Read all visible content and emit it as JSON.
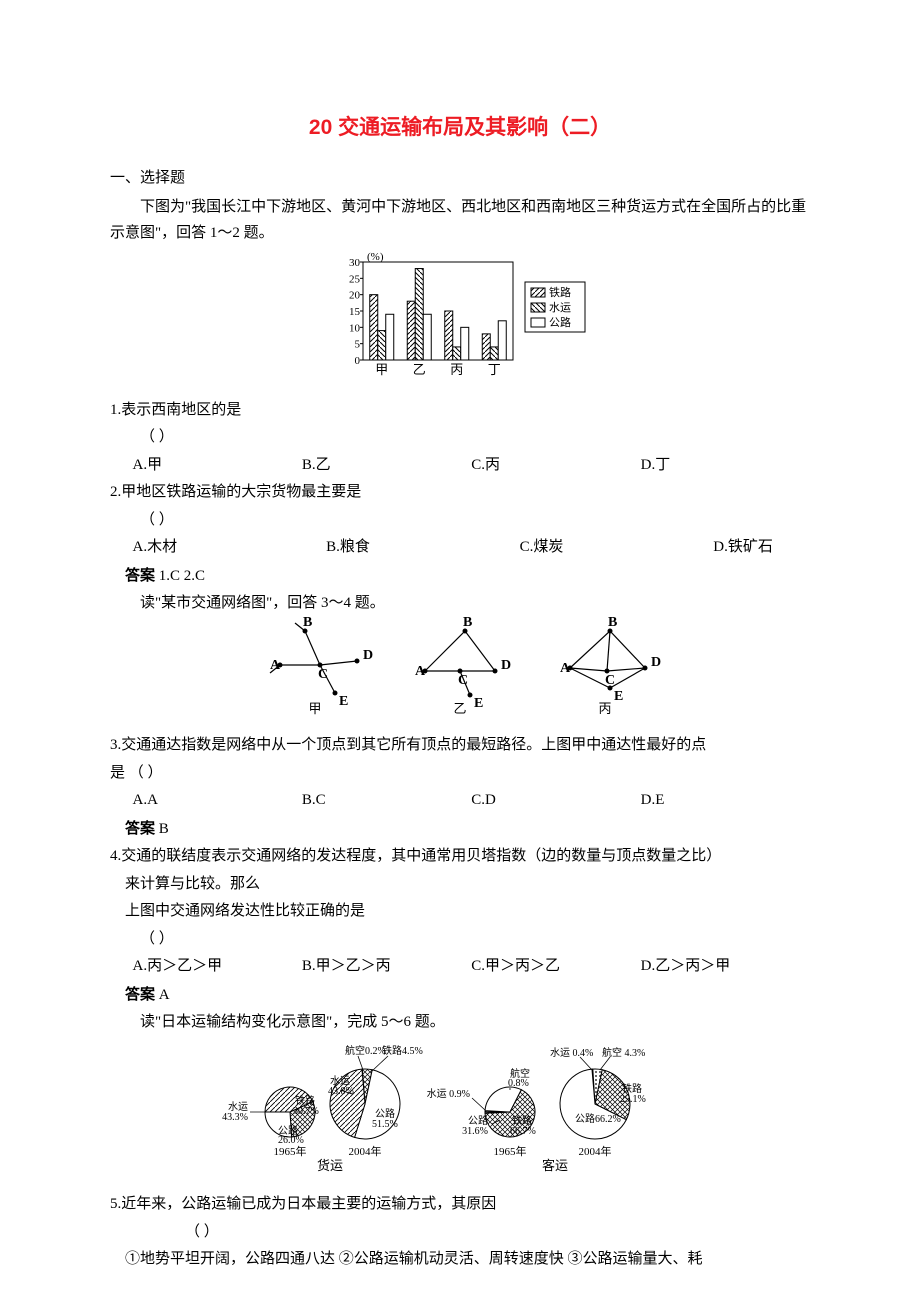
{
  "title": "20 交通运输布局及其影响（二）",
  "section1": "一、选择题",
  "intro1": "下图为\"我国长江中下游地区、黄河中下游地区、西北地区和西南地区三种货运方式在全国所占的比重示意图\"，回答 1～2 题。",
  "chart1": {
    "y_label": "(%)",
    "y_ticks": [
      0,
      5,
      10,
      15,
      20,
      25,
      30
    ],
    "categories": [
      "甲",
      "乙",
      "丙",
      "丁"
    ],
    "series": [
      {
        "name": "铁路",
        "values": [
          20,
          18,
          15,
          8
        ]
      },
      {
        "name": "水运",
        "values": [
          9,
          28,
          4,
          4
        ]
      },
      {
        "name": "公路",
        "values": [
          14,
          14,
          10,
          12
        ]
      }
    ],
    "legend": [
      "铁路",
      "水运",
      "公路"
    ]
  },
  "q1": {
    "stem": "1.表示西南地区的是",
    "paren": "（    ）",
    "opts": [
      "A.甲",
      "B.乙",
      "C.丙",
      "D.丁"
    ]
  },
  "q2": {
    "stem": "2.甲地区铁路运输的大宗货物最主要是",
    "paren": "（    ）",
    "opts": [
      "A.木材",
      "B.粮食",
      "C.煤炭",
      "D.铁矿石"
    ]
  },
  "ans12": {
    "label": "答案",
    "text": "  1.C  2.C"
  },
  "intro2": "读\"某市交通网络图\"，回答 3～4 题。",
  "networks": {
    "labels": [
      "A",
      "B",
      "C",
      "D",
      "E"
    ],
    "cap": [
      "甲",
      "乙",
      "丙"
    ]
  },
  "q3": {
    "stem_a": "3.交通通达指数是网络中从一个顶点到其它所有顶点的最短路径。上图甲中通达性最好的点",
    "stem_b": "是               （    ）",
    "opts": [
      "A.A",
      "B.C",
      "C.D",
      "D.E"
    ]
  },
  "ans3": {
    "label": "答案",
    "text": "  B"
  },
  "q4": {
    "stem_a": "4.交通的联结度表示交通网络的发达程度，其中通常用贝塔指数（边的数量与顶点数量之比）",
    "stem_b": "来计算与比较。那么",
    "stem_c": "上图中交通网络发达性比较正确的是",
    "paren": "（    ）",
    "opts": [
      "A.丙＞乙＞甲",
      "B.甲＞乙＞丙",
      "C.甲＞丙＞乙",
      "D.乙＞丙＞甲"
    ]
  },
  "ans4": {
    "label": "答案",
    "text": "  A"
  },
  "intro3": "读\"日本运输结构变化示意图\"，完成 5～6 题。",
  "pies": {
    "freight_1965": [
      {
        "name": "水运",
        "pct": 43.3
      },
      {
        "name": "铁路",
        "pct": 30.7
      },
      {
        "name": "公路",
        "pct": 26.0
      }
    ],
    "freight_2004": [
      {
        "name": "航空",
        "pct": 0.2
      },
      {
        "name": "铁路",
        "pct": 4.5
      },
      {
        "name": "公路",
        "pct": 51.5
      },
      {
        "name": "水运",
        "pct": 43.8
      }
    ],
    "pax_1965": [
      {
        "name": "水运",
        "pct": 0.9
      },
      {
        "name": "公路",
        "pct": 31.6
      },
      {
        "name": "铁路",
        "pct": 66.7
      },
      {
        "name": "航空",
        "pct": 0.8
      }
    ],
    "pax_2004": [
      {
        "name": "水运",
        "pct": 0.4
      },
      {
        "name": "航空",
        "pct": 4.3
      },
      {
        "name": "铁路",
        "pct": 29.1
      },
      {
        "name": "公路",
        "pct": 66.2
      }
    ],
    "years": [
      "1965年",
      "2004年"
    ],
    "groups": [
      "货运",
      "客运"
    ]
  },
  "q5": {
    "stem": "5.近年来，公路运输已成为日本最主要的运输方式，其原因",
    "paren": "（    ）",
    "cont": "①地势平坦开阔，公路四通八达  ②公路运输机动灵活、周转速度快  ③公路运输量大、耗"
  }
}
